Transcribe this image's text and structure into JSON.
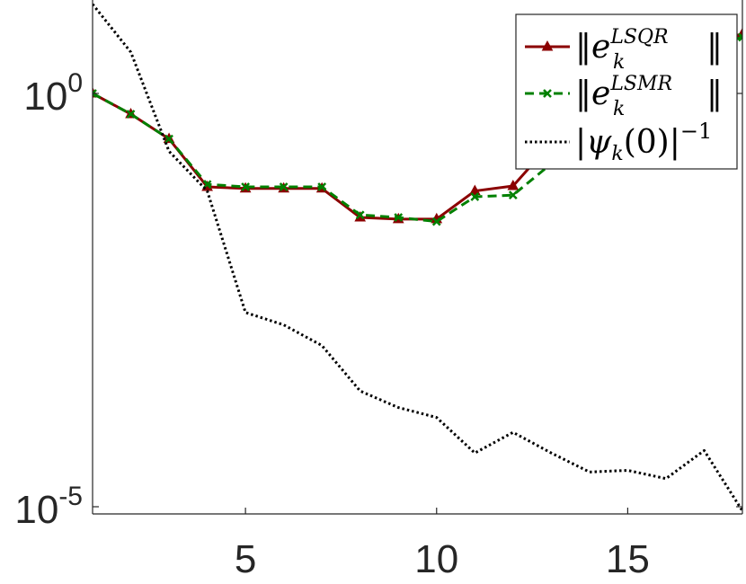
{
  "chart_data": {
    "type": "line",
    "title": "",
    "xlabel": "",
    "ylabel": "",
    "xlim": [
      1,
      18
    ],
    "ylim_log10": [
      -5,
      0.8
    ],
    "yscale": "log",
    "grid": false,
    "legend_placement": "top-right",
    "x_ticks": [
      5,
      10,
      15
    ],
    "x_tick_labels": [
      "5",
      "10",
      "15"
    ],
    "y_ticks": [
      {
        "value_log10": 0,
        "base": "10",
        "exp": "0"
      },
      {
        "value_log10": -5,
        "base": "10",
        "exp": "-5"
      }
    ],
    "series": [
      {
        "name": "‖e_k^{LSQR}‖",
        "legend_base": "‖e",
        "legend_sub": "k",
        "legend_sup": "LSQR",
        "legend_tail": "‖",
        "color": "#8b0000",
        "style": "solid",
        "marker": "triangle",
        "x": [
          1,
          2,
          3,
          4,
          5,
          6,
          7,
          8,
          9,
          10,
          11,
          12,
          13,
          14,
          15,
          16,
          17,
          18
        ],
        "y_log10": [
          0.0,
          -0.25,
          -0.55,
          -1.13,
          -1.15,
          -1.15,
          -1.15,
          -1.5,
          -1.52,
          -1.52,
          -1.18,
          -1.12,
          -0.6,
          -0.2,
          0.2,
          0.45,
          0.6,
          0.72
        ]
      },
      {
        "name": "‖e_k^{LSMR}‖",
        "legend_base": "‖e",
        "legend_sub": "k",
        "legend_sup": "LSMR",
        "legend_tail": "‖",
        "color": "#008000",
        "style": "dashed",
        "marker": "x",
        "x": [
          1,
          2,
          3,
          4,
          5,
          6,
          7,
          8,
          9,
          10,
          11,
          12,
          13,
          14,
          15,
          16,
          17,
          18
        ],
        "y_log10": [
          0.0,
          -0.25,
          -0.55,
          -1.1,
          -1.13,
          -1.13,
          -1.13,
          -1.47,
          -1.5,
          -1.55,
          -1.25,
          -1.23,
          -0.85,
          -0.4,
          0.1,
          0.4,
          0.55,
          0.68
        ]
      },
      {
        "name": "|ψ_k(0)|^{-1}",
        "legend_base": "|ψ",
        "legend_sub": "k",
        "legend_mid": "(0)|",
        "legend_sup": "−1",
        "color": "#000000",
        "style": "dotted",
        "marker": "none",
        "x": [
          1,
          2,
          3,
          4,
          5,
          6,
          7,
          8,
          9,
          10,
          11,
          12,
          13,
          14,
          15,
          16,
          17,
          18
        ],
        "y_log10": [
          1.08,
          0.5,
          -0.7,
          -1.18,
          -2.65,
          -2.8,
          -3.05,
          -3.6,
          -3.8,
          -3.92,
          -4.35,
          -4.1,
          -4.35,
          -4.58,
          -4.56,
          -4.66,
          -4.32,
          -5.05
        ]
      }
    ]
  }
}
